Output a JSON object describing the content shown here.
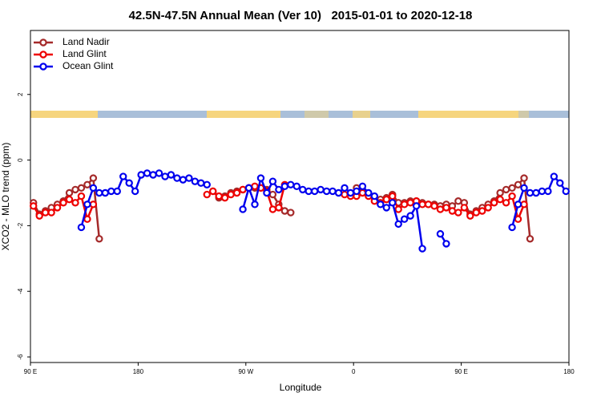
{
  "chart_data": {
    "type": "line",
    "title": "42.5N-47.5N Annual Mean (Ver 10)   2015-01-01 to 2020-12-18",
    "x_label": "Longitude",
    "y_label": "XCO2 - MLO trend (ppm)",
    "xlim": [
      90,
      540
    ],
    "ylim": [
      -6.17,
      3.95
    ],
    "xticks": [
      {
        "value": 90,
        "label": "90 E"
      },
      180,
      {
        "value": 270,
        "label": "90 W"
      },
      {
        "value": 360,
        "label": "0"
      },
      {
        "value": 450,
        "label": "90 E"
      },
      {
        "value": 540,
        "label": "180"
      }
    ],
    "yticks": [
      -6,
      -4,
      -2,
      0,
      2
    ],
    "legend": "top-left",
    "x": [
      92.5,
      97.5,
      102.5,
      107.5,
      112.5,
      117.5,
      122.5,
      127.5,
      132.5,
      137.5,
      142.5,
      147.5,
      152.5,
      157.5,
      162.5,
      167.5,
      172.5,
      177.5,
      182.5,
      187.5,
      192.5,
      197.5,
      202.5,
      207.5,
      212.5,
      217.5,
      222.5,
      227.5,
      232.5,
      237.5,
      242.5,
      247.5,
      252.5,
      257.5,
      262.5,
      267.5,
      272.5,
      277.5,
      282.5,
      287.5,
      292.5,
      297.5,
      302.5,
      307.5,
      312.5,
      317.5,
      322.5,
      327.5,
      332.5,
      337.5,
      342.5,
      347.5,
      352.5,
      357.5,
      362.5,
      367.5,
      372.5,
      377.5,
      382.5,
      387.5,
      392.5,
      397.5,
      402.5,
      407.5,
      412.5,
      417.5,
      422.5,
      427.5,
      432.5,
      437.5,
      442.5,
      447.5,
      452.5,
      457.5,
      462.5,
      467.5,
      472.5,
      477.5,
      482.5,
      487.5,
      492.5,
      497.5,
      502.5,
      507.5,
      512.5,
      517.5,
      522.5,
      527.5,
      532.5,
      537.5
    ],
    "series": [
      {
        "name": "Land Nadir",
        "color": "#a52a2a",
        "values": [
          -1.3,
          -1.65,
          -1.55,
          -1.45,
          -1.35,
          -1.25,
          -1.0,
          -0.9,
          -0.85,
          -0.75,
          -0.55,
          -2.4,
          null,
          null,
          null,
          null,
          null,
          null,
          null,
          null,
          null,
          null,
          null,
          null,
          null,
          null,
          null,
          null,
          null,
          null,
          -0.95,
          -1.15,
          -1.1,
          -1.0,
          -0.95,
          -0.9,
          -0.85,
          -0.85,
          -0.85,
          -0.9,
          -1.05,
          -1.35,
          -1.55,
          -1.6,
          null,
          null,
          null,
          null,
          null,
          null,
          null,
          null,
          null,
          null,
          -0.85,
          -0.95,
          -1.05,
          -1.15,
          -1.2,
          -1.15,
          -1.05,
          -1.3,
          -1.3,
          -1.25,
          -1.25,
          -1.3,
          -1.35,
          -1.35,
          -1.4,
          -1.35,
          -1.4,
          -1.25,
          -1.3,
          -1.65,
          -1.55,
          -1.45,
          -1.35,
          -1.25,
          -1.0,
          -0.9,
          -0.85,
          -0.75,
          -0.55,
          -2.4,
          null,
          null,
          null,
          null,
          null,
          null
        ]
      },
      {
        "name": "Land Glint",
        "color": "#ee0000",
        "values": [
          -1.4,
          -1.7,
          -1.6,
          -1.6,
          -1.45,
          -1.3,
          -1.2,
          -1.3,
          -1.1,
          -1.8,
          -1.35,
          null,
          null,
          null,
          null,
          null,
          null,
          null,
          null,
          null,
          null,
          null,
          null,
          null,
          null,
          null,
          null,
          null,
          null,
          -1.05,
          -0.95,
          -1.1,
          -1.15,
          -1.05,
          -1.0,
          -0.9,
          -0.85,
          -0.8,
          -0.85,
          -0.95,
          -1.5,
          -1.45,
          -0.75,
          null,
          null,
          null,
          null,
          null,
          null,
          null,
          null,
          null,
          -1.05,
          -1.1,
          -1.1,
          -1.0,
          -1.1,
          -1.25,
          -1.3,
          -1.2,
          -1.1,
          -1.5,
          -1.35,
          -1.3,
          -1.25,
          -1.35,
          -1.35,
          -1.4,
          -1.5,
          -1.45,
          -1.55,
          -1.6,
          -1.45,
          -1.7,
          -1.6,
          -1.55,
          -1.45,
          -1.3,
          -1.2,
          -1.3,
          -1.1,
          -1.8,
          -1.35,
          null,
          null,
          null,
          null,
          null,
          null,
          null
        ]
      },
      {
        "name": "Ocean Glint",
        "color": "#0000ee",
        "values": [
          null,
          null,
          null,
          null,
          null,
          null,
          null,
          null,
          -2.05,
          -1.35,
          -0.85,
          -1.0,
          -1.0,
          -0.95,
          -0.95,
          -0.5,
          -0.7,
          -0.95,
          -0.45,
          -0.4,
          -0.45,
          -0.4,
          -0.5,
          -0.45,
          -0.55,
          -0.6,
          -0.55,
          -0.65,
          -0.7,
          -0.75,
          null,
          null,
          null,
          null,
          null,
          -1.5,
          -0.85,
          -1.35,
          -0.55,
          -1.0,
          -0.65,
          -0.9,
          -0.8,
          -0.75,
          -0.8,
          -0.9,
          -0.95,
          -0.95,
          -0.9,
          -0.95,
          -0.95,
          -1.0,
          -0.85,
          -1.0,
          -0.95,
          -0.8,
          -1.0,
          -1.1,
          -1.35,
          -1.45,
          -1.3,
          -1.95,
          -1.8,
          -1.7,
          -1.4,
          -2.7,
          null,
          null,
          -2.25,
          -2.55,
          null,
          null,
          null,
          null,
          null,
          null,
          null,
          null,
          null,
          null,
          -2.05,
          -1.35,
          -0.85,
          -1.0,
          -1.0,
          -0.95,
          -0.95,
          -0.5,
          -0.7,
          -0.95
        ]
      }
    ]
  }
}
